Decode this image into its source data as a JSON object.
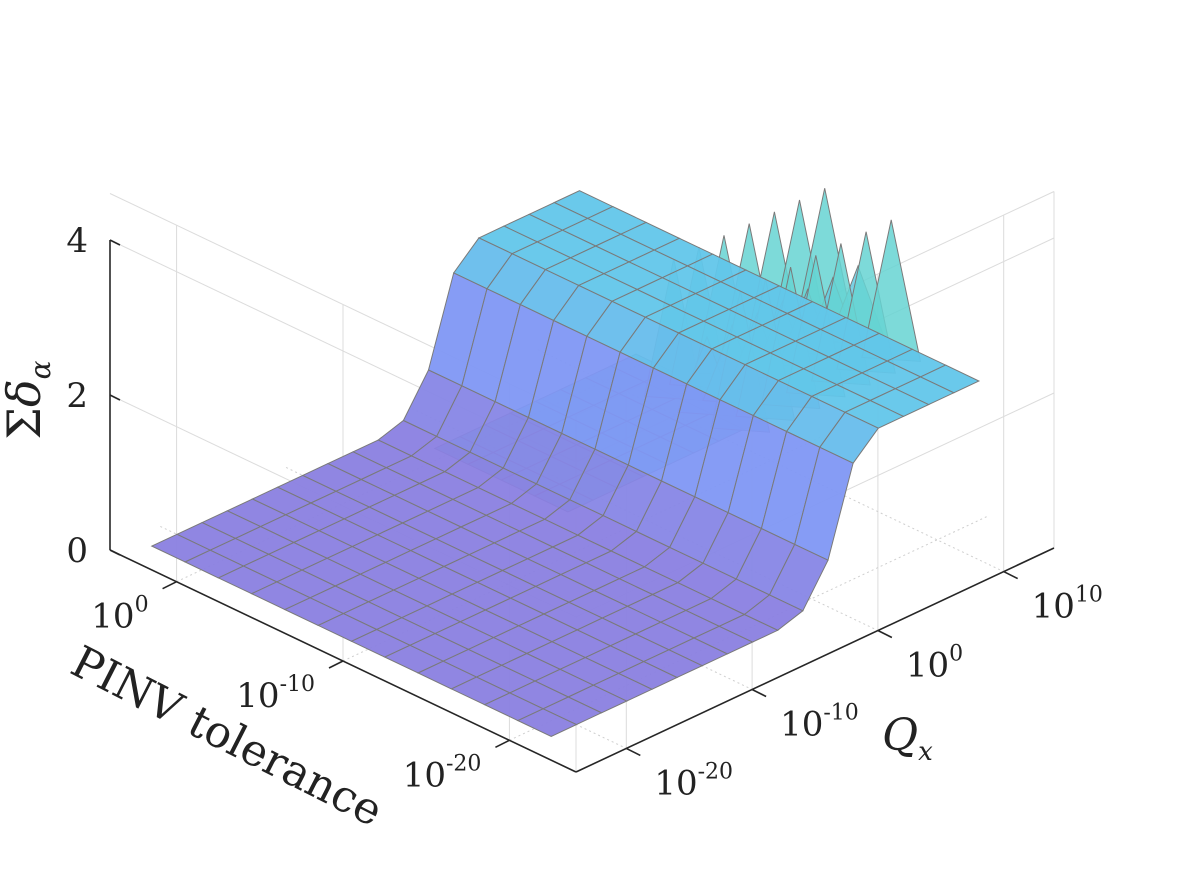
{
  "chart_data": {
    "type": "surface3d",
    "title": "",
    "xlabel": "PINV tolerance",
    "ylabel": "Q_x",
    "zlabel": "Σδ_α",
    "x_scale": "log",
    "y_scale": "log",
    "x_ticks": [
      {
        "base": "10",
        "exp": "0"
      },
      {
        "base": "10",
        "exp": "-10"
      },
      {
        "base": "10",
        "exp": "-20"
      }
    ],
    "y_ticks": [
      {
        "base": "10",
        "exp": "-20"
      },
      {
        "base": "10",
        "exp": "-10"
      },
      {
        "base": "10",
        "exp": "0"
      },
      {
        "base": "10",
        "exp": "10"
      }
    ],
    "z_ticks": [
      "0",
      "2",
      "4"
    ],
    "zlim": [
      0,
      4
    ],
    "grid": true,
    "colors": {
      "low": "#8a7fe0",
      "mid": "#7f98f5",
      "high": "#62c6ea",
      "top": "#67d8c7",
      "edge": "#7a7a7a"
    },
    "x_log10_values": [
      3,
      1,
      -1,
      -3,
      -5,
      -7,
      -9,
      -11,
      -13,
      -15,
      -17,
      -19,
      -21
    ],
    "y_log10_values": [
      -22,
      -20,
      -18,
      -16,
      -14,
      -12,
      -10,
      -8,
      -6,
      -4,
      -2,
      0,
      2,
      4,
      6,
      8,
      10,
      12
    ],
    "z_rows": [
      [
        0,
        0,
        0,
        0,
        0,
        0,
        0,
        0,
        0,
        0,
        0.1,
        0.6,
        1.7,
        2.0,
        2.0,
        2.0,
        2.0,
        2.0
      ],
      [
        0,
        0,
        0,
        0,
        0,
        0,
        0,
        0,
        0,
        0,
        0.1,
        0.6,
        1.7,
        2.0,
        2.0,
        2.0,
        2.0,
        2.0
      ],
      [
        0,
        0,
        0,
        0,
        0,
        0,
        0,
        0,
        0,
        0,
        0.1,
        0.6,
        1.7,
        2.0,
        2.0,
        2.0,
        2.0,
        2.0
      ],
      [
        0,
        0,
        0,
        0,
        0,
        0,
        0,
        0,
        0,
        0,
        0.1,
        0.6,
        1.7,
        2.0,
        2.0,
        2.0,
        2.0,
        2.0
      ],
      [
        0,
        0,
        0,
        0,
        0,
        0,
        0,
        0,
        0,
        0,
        0.1,
        0.6,
        1.7,
        2.0,
        2.0,
        2.0,
        2.0,
        2.0
      ],
      [
        0,
        0,
        0,
        0,
        0,
        0,
        0,
        0,
        0,
        0,
        0.1,
        0.6,
        1.7,
        2.0,
        2.0,
        2.0,
        2.0,
        2.0
      ],
      [
        0,
        0,
        0,
        0,
        0,
        0,
        0,
        0,
        0,
        0,
        0.1,
        0.6,
        1.7,
        2.0,
        2.0,
        2.0,
        2.0,
        2.0
      ],
      [
        0,
        0,
        0,
        0,
        0,
        0,
        0,
        0,
        0,
        0,
        0.1,
        0.6,
        1.7,
        2.0,
        2.0,
        2.0,
        2.0,
        2.0
      ],
      [
        0,
        0,
        0,
        0,
        0,
        0,
        0,
        0,
        0,
        0,
        0.1,
        0.6,
        1.7,
        2.0,
        2.0,
        2.0,
        2.0,
        2.0
      ],
      [
        0,
        0,
        0,
        0,
        0,
        0,
        0,
        0,
        0,
        0,
        0.1,
        0.6,
        1.7,
        2.0,
        2.0,
        2.0,
        2.0,
        2.0
      ],
      [
        0,
        0,
        0,
        0,
        0,
        0,
        0,
        0,
        0,
        0,
        0.1,
        0.6,
        1.7,
        2.0,
        2.0,
        2.0,
        2.0,
        2.0
      ],
      [
        0,
        0,
        0,
        0,
        0,
        0,
        0,
        0,
        0,
        0,
        0.1,
        0.6,
        1.7,
        2.0,
        2.0,
        2.0,
        2.0,
        2.0
      ],
      [
        0,
        0,
        0,
        0,
        0,
        0,
        0,
        0,
        0,
        0,
        0.1,
        0.6,
        1.7,
        2.0,
        2.0,
        2.0,
        2.0,
        2.0
      ]
    ],
    "back_plateau": {
      "x_log10_range": [
        -14,
        -22
      ],
      "y_log10_range": [
        -22,
        -6
      ],
      "z": 3.0
    },
    "spikes": {
      "x_log10_values": [
        -13,
        -15,
        -17,
        -19
      ],
      "y_log10_values": [
        -4,
        -2,
        0,
        2,
        4,
        6,
        8,
        10
      ],
      "z_peak": 4.0,
      "z_valley": 2.0
    }
  }
}
